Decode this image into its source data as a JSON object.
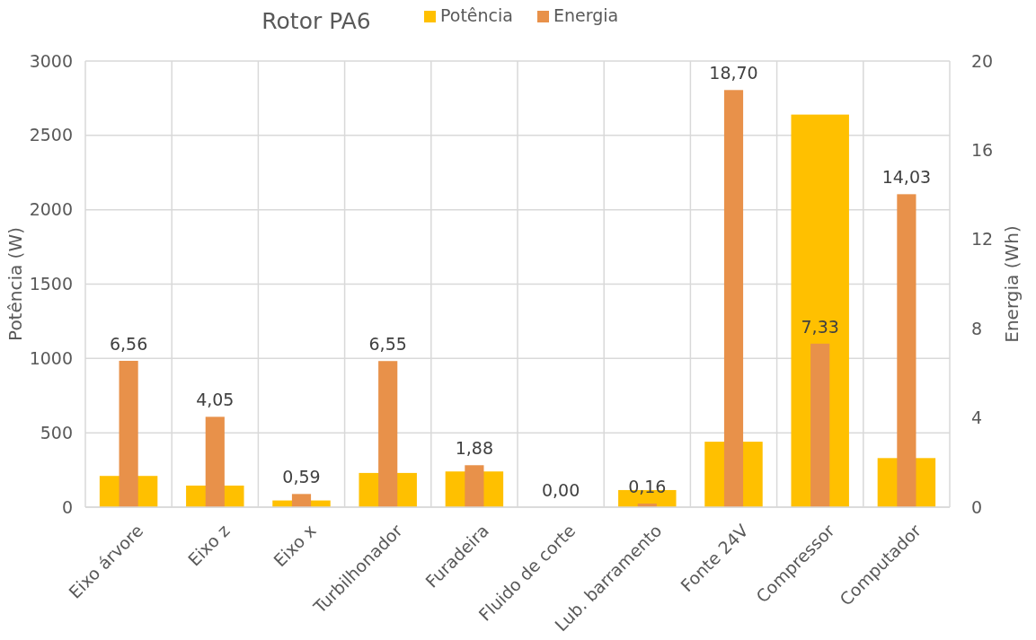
{
  "chart_data": {
    "type": "bar",
    "title": "Rotor PA6",
    "ylabel": "Potência (W)",
    "y2label": "Energia (Wh)",
    "categories": [
      "Eixo árvore",
      "Eixo z",
      "Eixo x",
      "Turbilhonador",
      "Furadeira",
      "Fluido de corte",
      "Lub. barramento",
      "Fonte 24V",
      "Compressor",
      "Computador"
    ],
    "series": [
      {
        "name": "Potência",
        "color": "#ffc000",
        "values": [
          210,
          145,
          45,
          230,
          240,
          0,
          115,
          440,
          2640,
          330
        ]
      },
      {
        "name": "Energia",
        "color": "#e8914a",
        "axis": "y2",
        "values": [
          6.56,
          4.05,
          0.59,
          6.55,
          1.88,
          0.0,
          0.16,
          18.7,
          7.33,
          14.03
        ],
        "value_labels": [
          "6,56",
          "4,05",
          "0,59",
          "6,55",
          "1,88",
          "0,00",
          "0,16",
          "18,70",
          "7,33",
          "14,03"
        ]
      }
    ],
    "ylim": [
      0,
      3000
    ],
    "yticks": [
      0,
      500,
      1000,
      1500,
      2000,
      2500,
      3000
    ],
    "y2lim": [
      0,
      20
    ],
    "y2ticks": [
      0,
      4,
      8,
      12,
      16,
      20
    ],
    "grid": true,
    "legend": "top"
  }
}
